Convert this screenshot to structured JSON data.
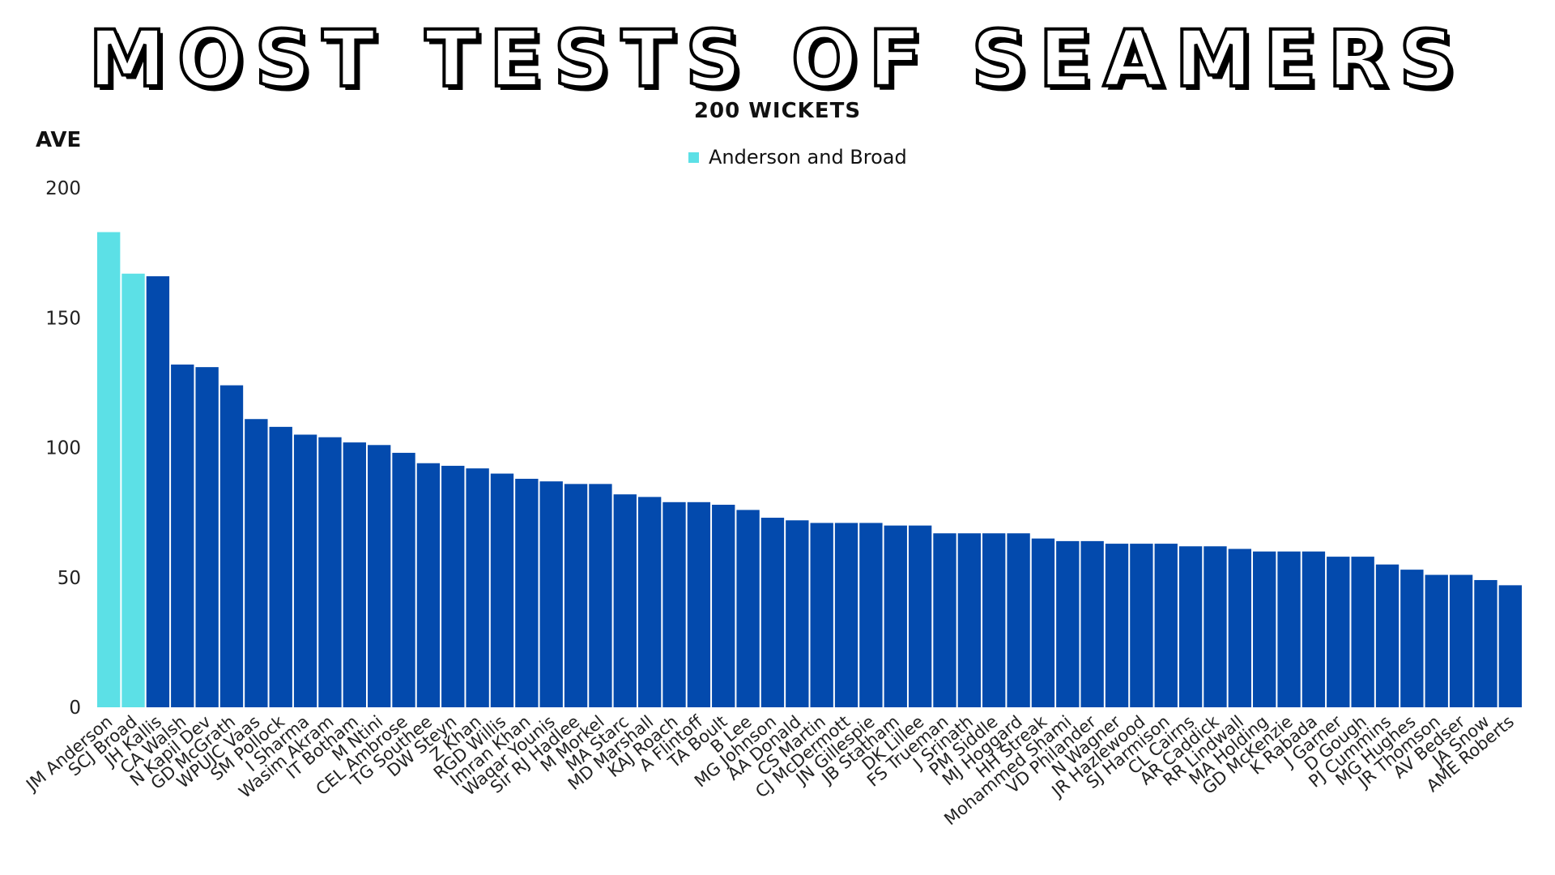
{
  "chart_data": {
    "type": "bar",
    "title": "MOST TESTS OF SEAMERS",
    "subtitle": "200 WICKETS",
    "ylabel": "AVE",
    "xlabel": "",
    "ylim": [
      0,
      200
    ],
    "yticks": [
      0,
      50,
      100,
      150,
      200
    ],
    "grid": false,
    "legend": {
      "position": "top-center",
      "entries": [
        {
          "label": "Anderson and Broad",
          "color": "#5ce0e6"
        }
      ]
    },
    "highlight_color": "#5ce0e6",
    "base_color": "#034aad",
    "highlighted": [
      "JM Anderson",
      "SCJ Broad"
    ],
    "categories": [
      "JM Anderson",
      "SCJ Broad",
      "JH Kallis",
      "CA Walsh",
      "N Kapil Dev",
      "GD McGrath",
      "WPUJC Vaas",
      "SM Pollock",
      "I Sharma",
      "Wasim Akram",
      "IT Botham",
      "M Ntini",
      "CEL Ambrose",
      "TG Southee",
      "DW Steyn",
      "Z Khan",
      "RGD Willis",
      "Imran Khan",
      "Waqar Younis",
      "Sir RJ Hadlee",
      "M Morkel",
      "MA Starc",
      "MD Marshall",
      "KAJ Roach",
      "A Flintoff",
      "TA Boult",
      "B Lee",
      "MG Johnson",
      "AA Donald",
      "CS Martin",
      "CJ McDermott",
      "JN Gillespie",
      "JB Statham",
      "DK Lillee",
      "FS Trueman",
      "J Srinath",
      "PM Siddle",
      "MJ Hoggard",
      "HH Streak",
      "Mohammed Shami",
      "VD Philander",
      "N Wagner",
      "JR Hazlewood",
      "SJ Harmison",
      "CL Cairns",
      "AR Caddick",
      "RR Lindwall",
      "MA Holding",
      "GD McKenzie",
      "K Rabada",
      "J Garner",
      "D Gough",
      "PJ Cummins",
      "MG Hughes",
      "JR Thomson",
      "AV Bedser",
      "JA Snow",
      "AME Roberts"
    ],
    "values": [
      183,
      167,
      166,
      132,
      131,
      124,
      111,
      108,
      105,
      104,
      102,
      101,
      98,
      94,
      93,
      92,
      90,
      88,
      87,
      86,
      86,
      82,
      81,
      79,
      79,
      78,
      76,
      73,
      72,
      71,
      71,
      71,
      70,
      70,
      67,
      67,
      67,
      67,
      65,
      64,
      64,
      63,
      63,
      63,
      62,
      62,
      61,
      60,
      60,
      60,
      58,
      58,
      55,
      53,
      51,
      51,
      49,
      47
    ]
  }
}
